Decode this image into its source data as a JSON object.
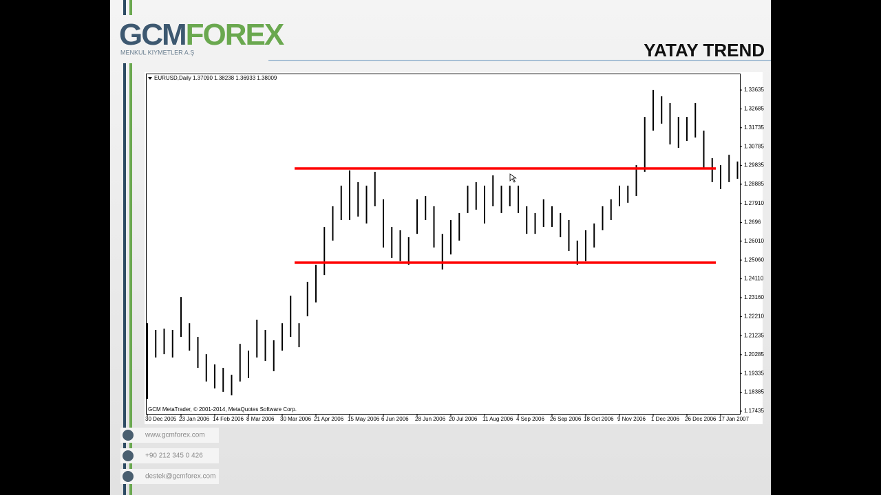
{
  "slide": {
    "logo_left": "GCM",
    "logo_right": "FOREX",
    "logo_sub": "MENKUL KIYMETLER A.Ş",
    "contacts": [
      "www.gcmforex.com",
      "+90 212 345 0 426",
      "destek@gcmforex.com"
    ]
  },
  "chart_data": {
    "type": "ohlc",
    "title": "YATAY TREND",
    "header": "EURUSD,Daily  1.37090 1.38238 1.36933 1.38009",
    "footer": "GCM MetaTrader, © 2001-2014, MetaQuotes Software Corp.",
    "categories": [
      "30 Dec 2005",
      null,
      null,
      null,
      "23 Jan 2006",
      null,
      null,
      null,
      "14 Feb 2006",
      null,
      null,
      null,
      "8 Mar 2006",
      null,
      null,
      null,
      "30 Mar 2006",
      null,
      null,
      null,
      "21 Apr 2006",
      null,
      null,
      null,
      "15 May 2006",
      null,
      null,
      null,
      "6 Jun 2006",
      null,
      null,
      null,
      "28 Jun 2006",
      null,
      null,
      null,
      "20 Jul 2006",
      null,
      null,
      null,
      "11 Aug 2006",
      null,
      null,
      null,
      "4 Sep 2006",
      null,
      null,
      null,
      "26 Sep 2006",
      null,
      null,
      null,
      "18 Oct 2006",
      null,
      null,
      null,
      "9 Nov 2006",
      null,
      null,
      null,
      "1 Dec 2006",
      null,
      null,
      null,
      "26 Dec 2006",
      null,
      null,
      null,
      "17 Jan 2007",
      null,
      null
    ],
    "high": [
      1.2187,
      1.2153,
      1.216,
      1.2153,
      1.2319,
      1.2187,
      1.2118,
      1.2031,
      1.1979,
      1.1962,
      1.1927,
      1.2083,
      1.2049,
      1.2205,
      1.2153,
      1.2101,
      1.2187,
      1.2326,
      1.2187,
      1.2396,
      1.2482,
      1.2673,
      1.2777,
      1.2881,
      1.2958,
      1.2899,
      1.2881,
      1.2951,
      1.2812,
      1.2673,
      1.2656,
      1.2621,
      1.2812,
      1.2829,
      1.2777,
      1.2638,
      1.2708,
      1.2743,
      1.2881,
      1.2899,
      1.2881,
      1.2933,
      1.2881,
      1.2881,
      1.2881,
      1.2777,
      1.2743,
      1.2812,
      1.2777,
      1.2743,
      1.2708,
      1.2604,
      1.2656,
      1.269,
      1.2777,
      1.2812,
      1.2881,
      1.2881,
      1.2985,
      1.3228,
      1.3364,
      1.3332,
      1.3298,
      1.3228,
      1.3228,
      1.3298,
      1.3159,
      1.302,
      1.2985,
      1.3037,
      1.3003
    ],
    "low": [
      1.1806,
      1.2014,
      1.2031,
      1.2014,
      1.2118,
      1.2049,
      1.1962,
      1.1893,
      1.1858,
      1.1841,
      1.1823,
      1.1893,
      1.191,
      1.2014,
      1.1997,
      1.1945,
      1.2049,
      1.2118,
      1.2066,
      1.2222,
      1.2292,
      1.243,
      1.2604,
      1.2708,
      1.2708,
      1.2725,
      1.269,
      1.2777,
      1.2569,
      1.2517,
      1.25,
      1.2482,
      1.2638,
      1.2708,
      1.2569,
      1.2458,
      1.2534,
      1.2604,
      1.2743,
      1.276,
      1.269,
      1.2777,
      1.2743,
      1.2777,
      1.2743,
      1.2638,
      1.2638,
      1.2673,
      1.2673,
      1.2621,
      1.2552,
      1.2482,
      1.25,
      1.2569,
      1.2656,
      1.2708,
      1.2777,
      1.2795,
      1.2829,
      1.2951,
      1.3159,
      1.3194,
      1.3089,
      1.3072,
      1.3107,
      1.3124,
      1.2968,
      1.2899,
      1.2864,
      1.2899,
      1.2916
    ],
    "color": "#000000",
    "hlines": [
      1.2968,
      1.2493
    ],
    "hline_color": "#ff0000",
    "ylim": [
      1.17262,
      1.34468
    ],
    "yticks": [
      1.33635,
      1.32685,
      1.31735,
      1.30785,
      1.29835,
      1.28885,
      {
        "value": 1.2791,
        "label": "1.27910"
      },
      1.2696,
      {
        "value": 1.2601,
        "label": "1.26010"
      },
      {
        "value": 1.2506,
        "label": "1.25060"
      },
      {
        "value": 1.2411,
        "label": "1.24110"
      },
      {
        "value": 1.2316,
        "label": "1.23160"
      },
      {
        "value": 1.2221,
        "label": "1.22210"
      },
      1.21235,
      1.20285,
      1.19335,
      1.18385,
      1.17435
    ],
    "grid": false
  }
}
